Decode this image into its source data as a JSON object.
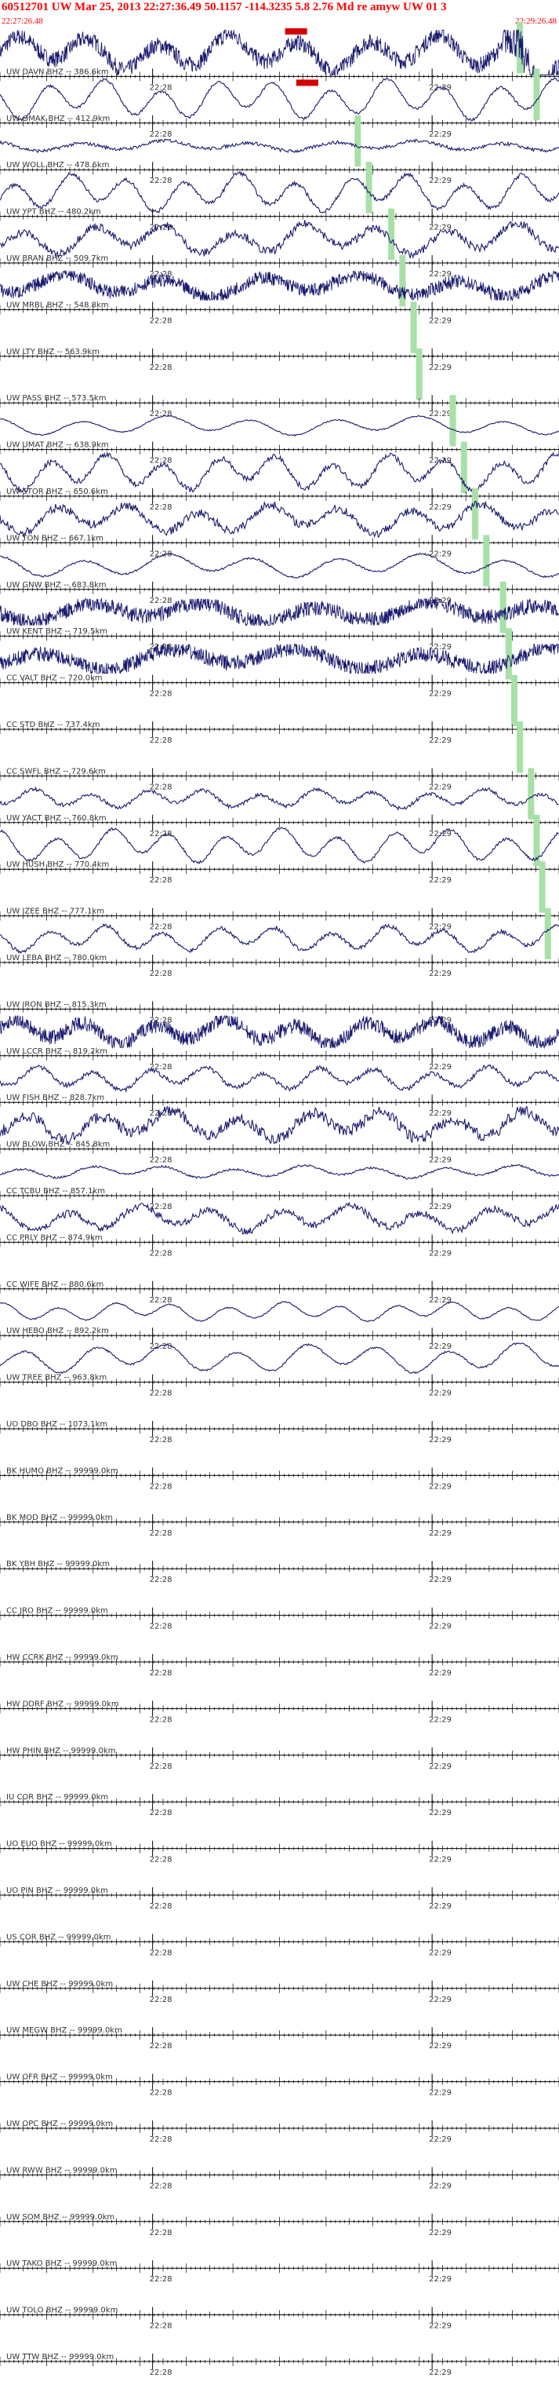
{
  "header": {
    "title": "60512701 UW Mar 25, 2013 22:27:36.49    50.1157 -114.3235  5.8 2.76 Md re amyw UW 01   3",
    "start_time": "22:27:26.48",
    "end_time": "22:29:26.48"
  },
  "colors": {
    "trace": "#1a1a6e",
    "axis": "#000000",
    "pick_green": "#a8e0a8",
    "pick_red": "#d40000",
    "header_red": "#ff0000"
  },
  "chart_data": {
    "type": "line",
    "title": "60512701 UW Mar 25, 2013 22:27:36.49    50.1157 -114.3235  5.8 2.76 Md re amyw UW 01   3",
    "xlabel": "",
    "ylabel": "",
    "time_ticks": [
      "22:28",
      "22:29"
    ],
    "x_range_seconds": [
      0,
      120
    ],
    "stations": [
      {
        "label": "UW DAVN BHZ -- 386.6km",
        "amp": 0.85,
        "period": 5,
        "noise": 0.35,
        "burst_start": 0.9,
        "pick": 0.93
      },
      {
        "label": "UW OMAK BHZ -- 412.9km",
        "amp": 0.95,
        "period": 4,
        "noise": 0.05,
        "pick": 0.96
      },
      {
        "label": "UW WOLL BHZ -- 478.6km",
        "amp": 0.25,
        "period": 6,
        "noise": 0.25,
        "pick": 0.64
      },
      {
        "label": "UW YPT BHZ -- 480.2km",
        "amp": 0.9,
        "period": 4,
        "noise": 0.08,
        "pick": 0.66
      },
      {
        "label": "UW BRAN BHZ -- 509.7km",
        "amp": 0.75,
        "period": 5,
        "noise": 0.2,
        "pick": 0.7
      },
      {
        "label": "UW MRBL BHZ -- 548.8km",
        "amp": 0.55,
        "period": 7,
        "noise": 0.45,
        "pick": 0.72
      },
      {
        "label": "UW LTY BHZ -- 563.9km",
        "amp": 0,
        "period": 5,
        "noise": 0,
        "pick": 0.74
      },
      {
        "label": "UW PASS BHZ -- 573.5km",
        "amp": 0,
        "period": 5,
        "noise": 0,
        "pick": 0.75
      },
      {
        "label": "UW UMAT BHZ -- 638.9km",
        "amp": 0.45,
        "period": 6,
        "noise": 0.05,
        "pick": 0.81
      },
      {
        "label": "UW STOR BHZ -- 650.6km",
        "amp": 0.85,
        "period": 4,
        "noise": 0.12,
        "pick": 0.83
      },
      {
        "label": "UW TON BHZ -- 667.1km",
        "amp": 0.7,
        "period": 5,
        "noise": 0.22,
        "pick": 0.85
      },
      {
        "label": "UW GNW BHZ -- 683.8km",
        "amp": 0.55,
        "period": 6,
        "noise": 0.06,
        "pick": 0.87
      },
      {
        "label": "UW KENT BHZ -- 719.5km",
        "amp": 0.5,
        "period": 8,
        "noise": 0.55,
        "pick": 0.9
      },
      {
        "label": "CC VALT BHZ -- 720.0km",
        "amp": 0.55,
        "period": 9,
        "noise": 0.5,
        "pick": 0.91
      },
      {
        "label": "CC STD BHZ -- 737.4km",
        "amp": 0,
        "period": 5,
        "noise": 0,
        "pick": 0.92
      },
      {
        "label": "CC SWFL BHZ -- 729.6km",
        "amp": 0,
        "period": 5,
        "noise": 0,
        "pick": 0.93
      },
      {
        "label": "UW YACT BHZ -- 760.8km",
        "amp": 0.45,
        "period": 4,
        "noise": 0.15,
        "pick": 0.95
      },
      {
        "label": "UW HUSH BHZ -- 770.4km",
        "amp": 0.8,
        "period": 4,
        "noise": 0.06,
        "pick": 0.96
      },
      {
        "label": "UW IZEE BHZ -- 777.1km",
        "amp": 0,
        "period": 5,
        "noise": 0,
        "pick": 0.97
      },
      {
        "label": "UW LEBA BHZ -- 780.0km",
        "amp": 0.6,
        "period": 4,
        "noise": 0.12,
        "pick": 0.98
      },
      {
        "label": "UW IRON BHZ -- 815.3km",
        "amp": 0,
        "period": 5,
        "noise": 0
      },
      {
        "label": "UW LCCR BHZ -- 819.2km",
        "amp": 0.6,
        "period": 5,
        "noise": 0.45
      },
      {
        "label": "UW FISH BHZ -- 828.7km",
        "amp": 0.55,
        "period": 4,
        "noise": 0.15
      },
      {
        "label": "UW BLOW BHZ -- 845.8km",
        "amp": 0.7,
        "period": 5,
        "noise": 0.3
      },
      {
        "label": "CC TCBU BHZ -- 857.1km",
        "amp": 0.3,
        "period": 5,
        "noise": 0.12
      },
      {
        "label": "CC PRLY BHZ -- 874.9km",
        "amp": 0.6,
        "period": 5,
        "noise": 0.22
      },
      {
        "label": "CC WIFE BHZ -- 880.6km",
        "amp": 0,
        "period": 5,
        "noise": 0
      },
      {
        "label": "UW HEBO BHZ -- 892.2km",
        "amp": 0.45,
        "period": 4,
        "noise": 0.05
      },
      {
        "label": "UW TREE BHZ -- 963.8km",
        "amp": 0.7,
        "period": 5,
        "noise": 0.05
      },
      {
        "label": "UO DBO BHZ -- 1073.1km",
        "amp": 0,
        "period": 5,
        "noise": 0
      },
      {
        "label": "BK HUMO BHZ -- 99999.0km",
        "amp": 0,
        "period": 5,
        "noise": 0
      },
      {
        "label": "BK MOD BHZ -- 99999.0km",
        "amp": 0,
        "period": 5,
        "noise": 0
      },
      {
        "label": "BK YBH BHZ -- 99999.0km",
        "amp": 0,
        "period": 5,
        "noise": 0
      },
      {
        "label": "CC JRO BHZ -- 99999.0km",
        "amp": 0,
        "period": 5,
        "noise": 0
      },
      {
        "label": "HW CCRK BHZ -- 99999.0km",
        "amp": 0,
        "period": 5,
        "noise": 0
      },
      {
        "label": "HW DDRF BHZ -- 99999.0km",
        "amp": 0,
        "period": 5,
        "noise": 0
      },
      {
        "label": "HW PHIN BHZ -- 99999.0km",
        "amp": 0,
        "period": 5,
        "noise": 0
      },
      {
        "label": "IU COR BHZ -- 99999.0km",
        "amp": 0,
        "period": 5,
        "noise": 0
      },
      {
        "label": "UO EUO BHZ -- 99999.0km",
        "amp": 0,
        "period": 5,
        "noise": 0
      },
      {
        "label": "UO PIN BHZ -- 99999.0km",
        "amp": 0,
        "period": 5,
        "noise": 0
      },
      {
        "label": "US COR BHZ -- 99999.0km",
        "amp": 0,
        "period": 5,
        "noise": 0
      },
      {
        "label": "UW CHE BHZ -- 99999.0km",
        "amp": 0,
        "period": 5,
        "noise": 0
      },
      {
        "label": "UW MEGW BHZ -- 99999.0km",
        "amp": 0,
        "period": 5,
        "noise": 0
      },
      {
        "label": "UW OFR BHZ -- 99999.0km",
        "amp": 0,
        "period": 5,
        "noise": 0
      },
      {
        "label": "UW OPC BHZ -- 99999.0km",
        "amp": 0,
        "period": 5,
        "noise": 0
      },
      {
        "label": "UW RWW BHZ -- 99999.0km",
        "amp": 0,
        "period": 5,
        "noise": 0
      },
      {
        "label": "UW SOM BHZ -- 99999.0km",
        "amp": 0,
        "period": 5,
        "noise": 0
      },
      {
        "label": "UW TAKO BHZ -- 99999.0km",
        "amp": 0,
        "period": 5,
        "noise": 0
      },
      {
        "label": "UW TOLO BHZ -- 99999.0km",
        "amp": 0,
        "period": 5,
        "noise": 0
      },
      {
        "label": "UW TTW BHZ -- 99999.0km",
        "amp": 0,
        "period": 5,
        "noise": 0
      }
    ]
  }
}
